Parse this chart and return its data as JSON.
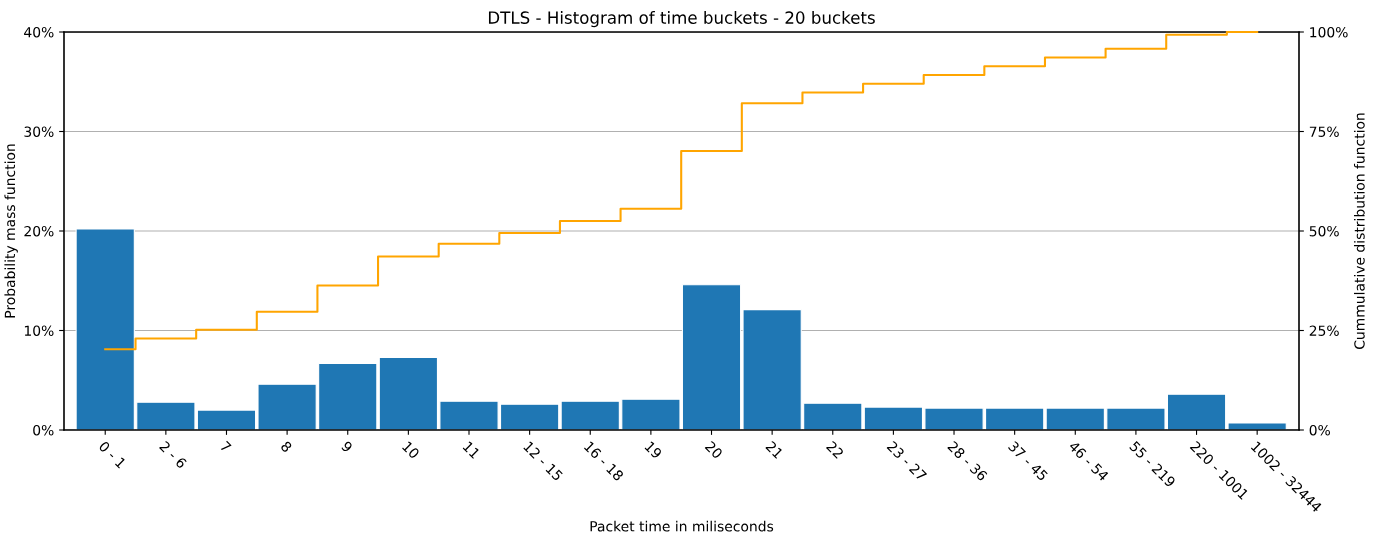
{
  "chart_data": {
    "type": "bar",
    "title": "DTLS - Histogram of time buckets - 20 buckets",
    "xlabel": "Packet time in miliseconds",
    "ylabel": "Probability mass function",
    "y2label": "Cummulative distribution function",
    "categories": [
      "0 - 1",
      "2 - 6",
      "7",
      "8",
      "9",
      "10",
      "11",
      "12 - 15",
      "16 - 18",
      "19",
      "20",
      "21",
      "22",
      "23 - 27",
      "28 - 36",
      "37 - 45",
      "46 - 54",
      "55 - 219",
      "220 - 1001",
      "1002 - 32444"
    ],
    "series": [
      {
        "color": "#1f77b4",
        "values": [
          20.2,
          2.8,
          2.0,
          4.6,
          6.7,
          7.3,
          2.9,
          2.6,
          2.9,
          3.1,
          14.6,
          12.1,
          2.7,
          2.3,
          2.2,
          2.2,
          2.2,
          2.2,
          3.6,
          0.7
        ]
      },
      {
        "type": "step",
        "axis": "y2",
        "color": "#ffa500",
        "values": [
          20.3,
          23.0,
          25.2,
          29.7,
          36.3,
          43.6,
          46.8,
          49.5,
          52.5,
          55.6,
          70.1,
          82.1,
          84.8,
          87.0,
          89.2,
          91.4,
          93.6,
          95.8,
          99.3,
          100
        ]
      }
    ],
    "ylim": [
      0,
      40
    ],
    "yticks": [
      {
        "value": 0,
        "label": "0%"
      },
      {
        "value": 10,
        "label": "10%"
      },
      {
        "value": 20,
        "label": "20%"
      },
      {
        "value": 30,
        "label": "30%"
      },
      {
        "value": 40,
        "label": "40%"
      }
    ],
    "y2lim": [
      0,
      100
    ],
    "y2ticks": [
      {
        "value": 0,
        "label": "0%"
      },
      {
        "value": 25,
        "label": "25%"
      },
      {
        "value": 50,
        "label": "50%"
      },
      {
        "value": 75,
        "label": "75%"
      },
      {
        "value": 100,
        "label": "100%"
      }
    ],
    "grid": "y",
    "legend": false
  }
}
